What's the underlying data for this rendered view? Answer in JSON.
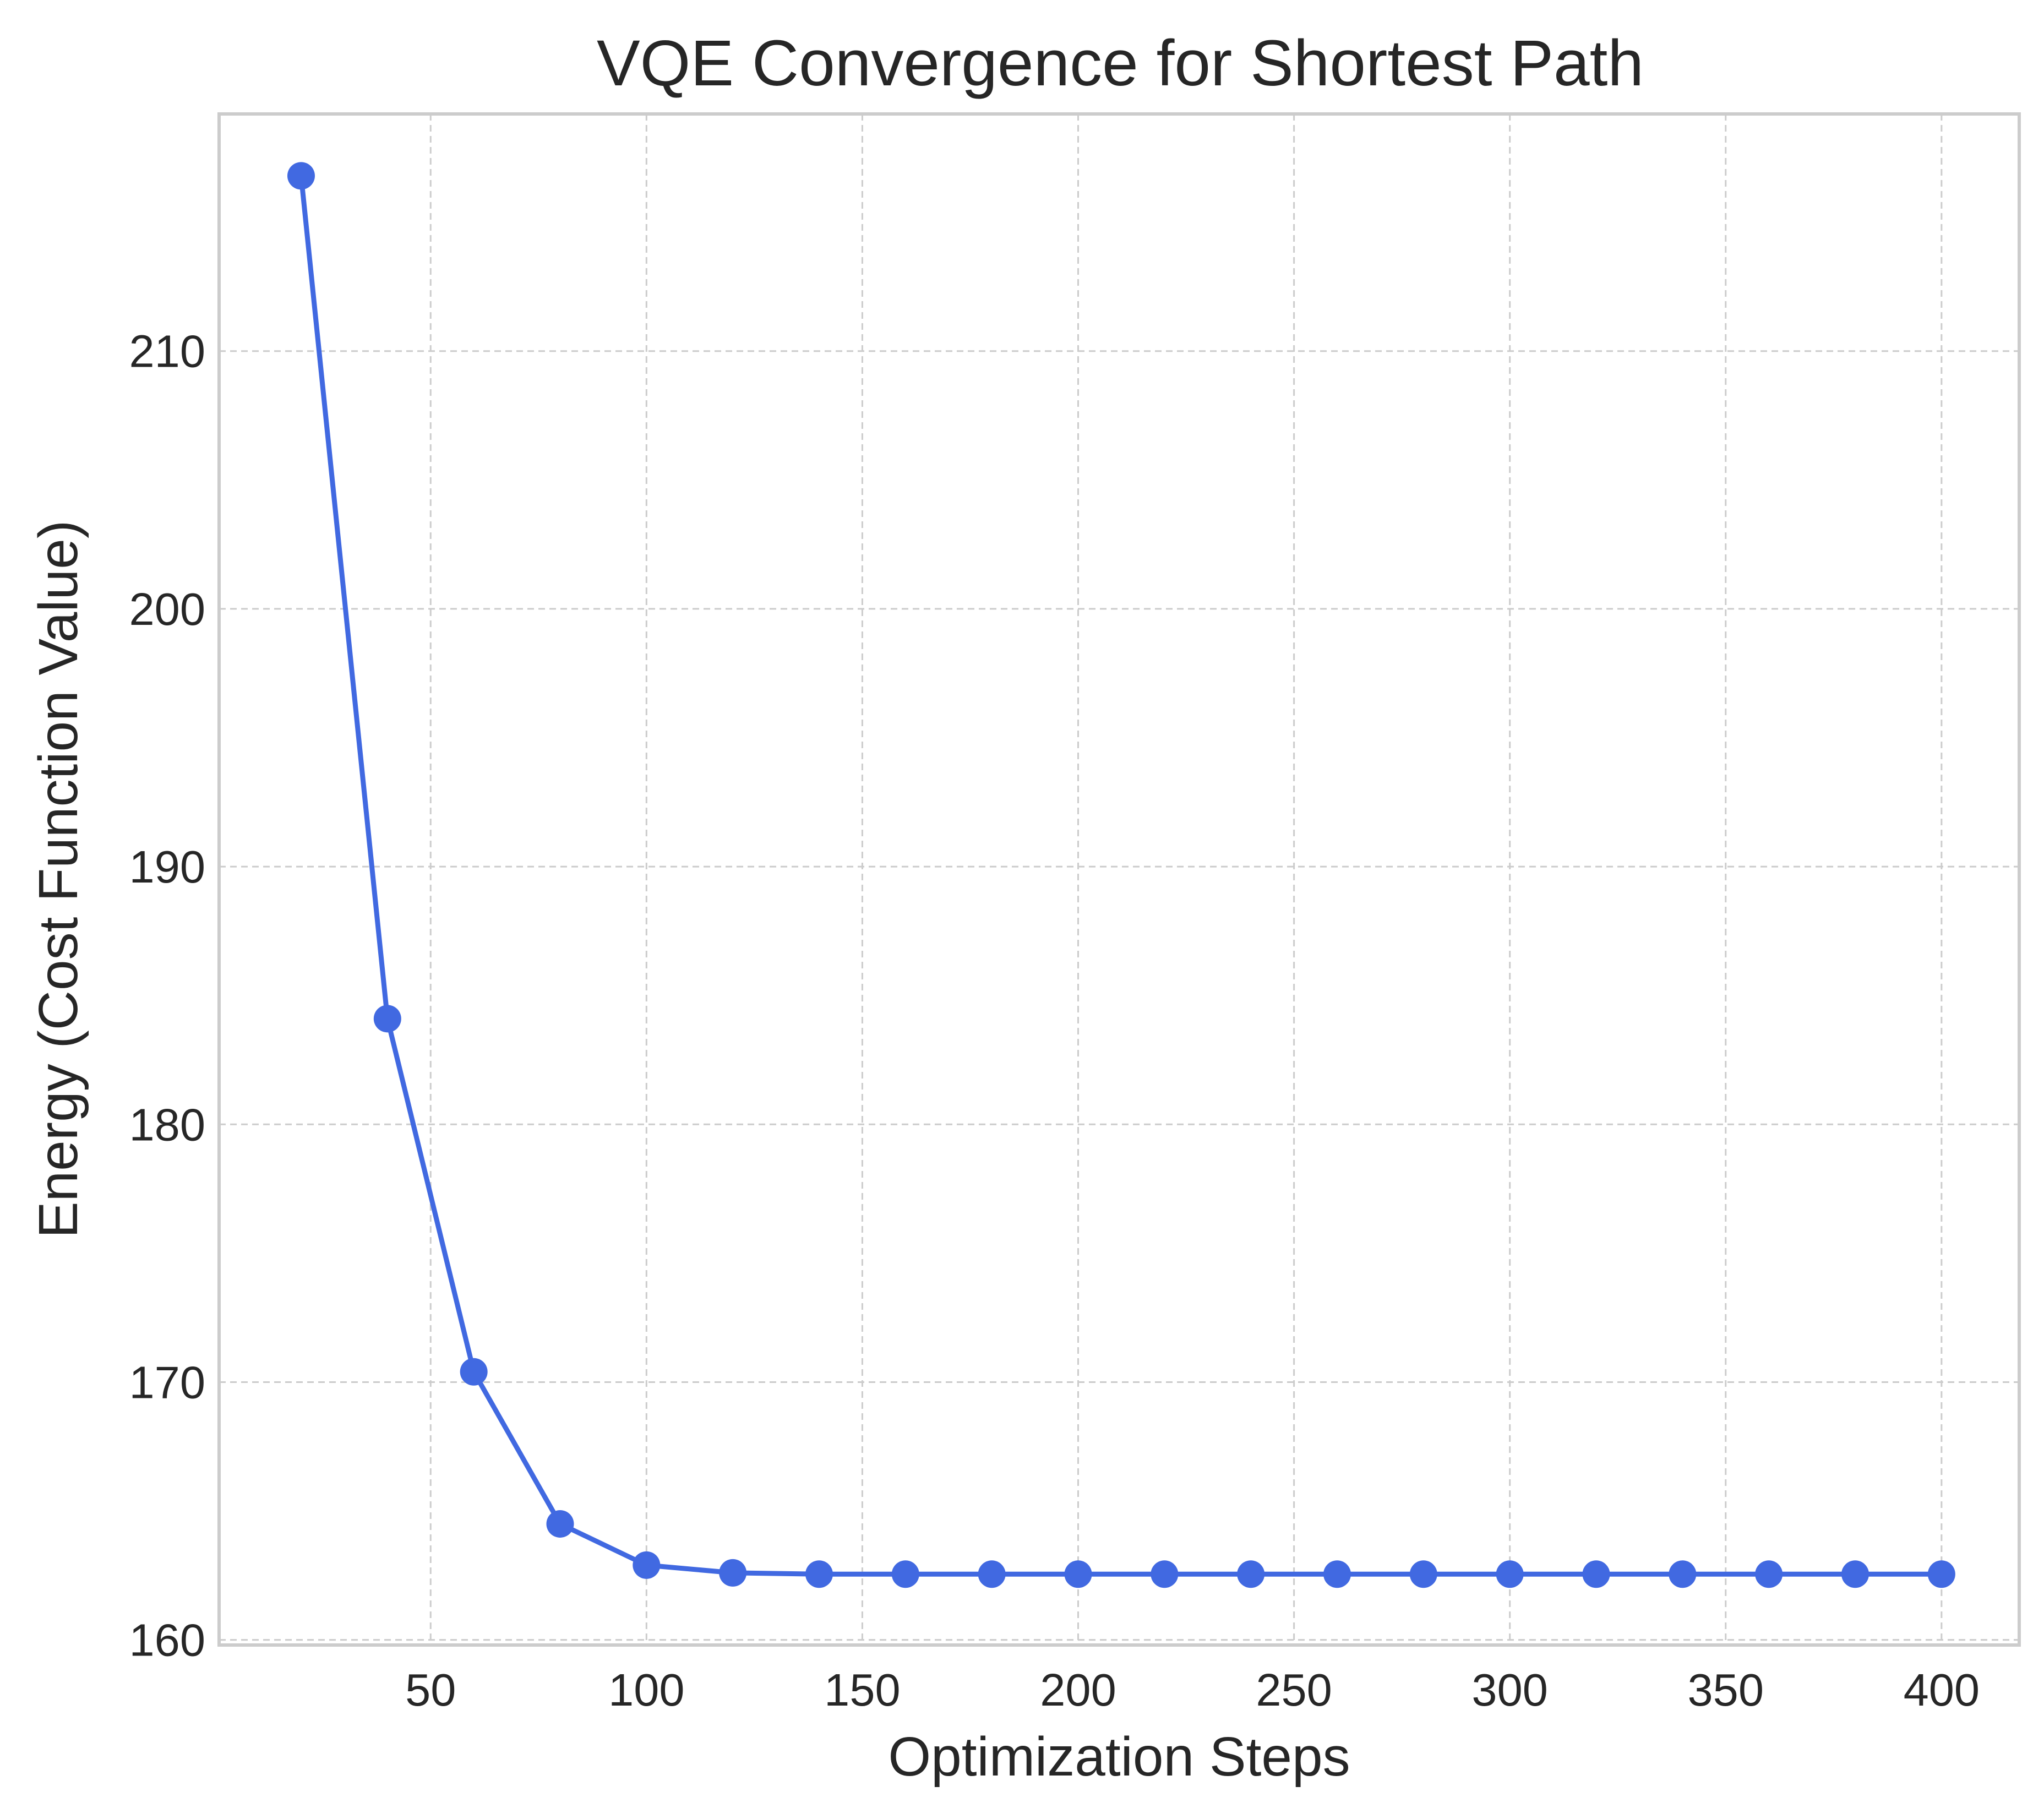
{
  "chart_data": {
    "type": "line",
    "title": "VQE Convergence for Shortest Path",
    "xlabel": "Optimization Steps",
    "ylabel": "Energy (Cost Function Value)",
    "xlim": [
      1,
      418
    ],
    "ylim": [
      159.8,
      219.2
    ],
    "x_ticks": [
      50,
      100,
      150,
      200,
      250,
      300,
      350,
      400
    ],
    "y_ticks": [
      160,
      170,
      180,
      190,
      200,
      210
    ],
    "grid": true,
    "legend": "none",
    "color": "#4169e1",
    "series": [
      {
        "x": [
          20,
          40,
          60,
          80,
          100,
          120,
          140,
          160,
          180,
          200,
          220,
          240,
          260,
          280,
          300,
          320,
          340,
          360,
          380,
          400
        ],
        "values": [
          216.8,
          184.1,
          170.4,
          164.5,
          162.9,
          162.6,
          162.55,
          162.55,
          162.55,
          162.55,
          162.55,
          162.55,
          162.55,
          162.55,
          162.55,
          162.55,
          162.55,
          162.55,
          162.55,
          162.55
        ]
      }
    ]
  }
}
